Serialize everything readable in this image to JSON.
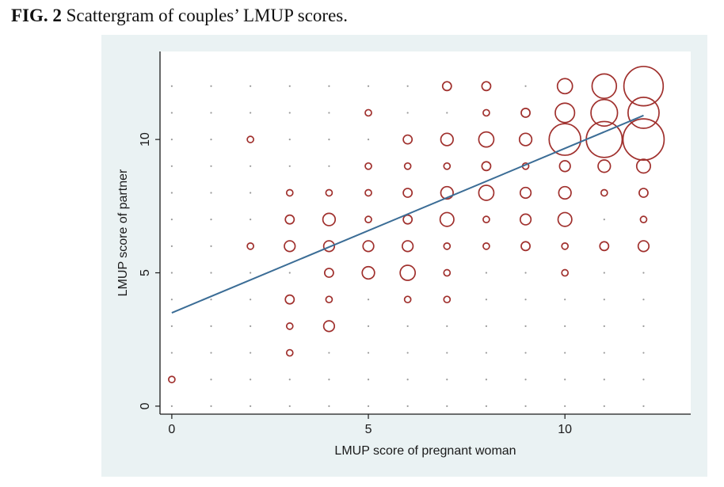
{
  "caption": {
    "label": "FIG. 2",
    "text": "Scattergram of couples’ LMUP scores."
  },
  "chart_data": {
    "type": "scatter",
    "title": "",
    "xlabel": "LMUP score of pregnant woman",
    "ylabel": "LMUP score of partner",
    "xlim": [
      -0.3,
      13.2
    ],
    "ylim": [
      -0.3,
      13.3
    ],
    "xticks": [
      0,
      5,
      10
    ],
    "yticks": [
      0,
      5,
      10
    ],
    "grid": true,
    "marker_color": "#a0302d",
    "line_color": "#3b6d96",
    "grid_dot_color": "#9a9a9a",
    "background": "#eaf2f3",
    "plot_background": "#ffffff",
    "size_note": "marker area proportional to number of couples",
    "points": [
      [
        0,
        1,
        1
      ],
      [
        2,
        6,
        1
      ],
      [
        2,
        10,
        1
      ],
      [
        3,
        2,
        1
      ],
      [
        3,
        3,
        1
      ],
      [
        3,
        4,
        2
      ],
      [
        3,
        6,
        3
      ],
      [
        3,
        7,
        2
      ],
      [
        3,
        8,
        1
      ],
      [
        4,
        3,
        3
      ],
      [
        4,
        4,
        1
      ],
      [
        4,
        5,
        2
      ],
      [
        4,
        6,
        3
      ],
      [
        4,
        7,
        4
      ],
      [
        4,
        8,
        1
      ],
      [
        5,
        5,
        4
      ],
      [
        5,
        6,
        3
      ],
      [
        5,
        7,
        1
      ],
      [
        5,
        8,
        1
      ],
      [
        5,
        9,
        1
      ],
      [
        5,
        11,
        1
      ],
      [
        6,
        4,
        1
      ],
      [
        6,
        5,
        6
      ],
      [
        6,
        6,
        3
      ],
      [
        6,
        7,
        2
      ],
      [
        6,
        8,
        2
      ],
      [
        6,
        9,
        1
      ],
      [
        6,
        10,
        2
      ],
      [
        7,
        4,
        1
      ],
      [
        7,
        5,
        1
      ],
      [
        7,
        6,
        1
      ],
      [
        7,
        7,
        5
      ],
      [
        7,
        8,
        4
      ],
      [
        7,
        9,
        1
      ],
      [
        7,
        10,
        4
      ],
      [
        7,
        12,
        2
      ],
      [
        8,
        6,
        1
      ],
      [
        8,
        7,
        1
      ],
      [
        8,
        8,
        6
      ],
      [
        8,
        9,
        2
      ],
      [
        8,
        10,
        6
      ],
      [
        8,
        11,
        1
      ],
      [
        8,
        12,
        2
      ],
      [
        9,
        6,
        2
      ],
      [
        9,
        7,
        3
      ],
      [
        9,
        8,
        3
      ],
      [
        9,
        9,
        1
      ],
      [
        9,
        10,
        4
      ],
      [
        9,
        11,
        2
      ],
      [
        10,
        5,
        1
      ],
      [
        10,
        6,
        1
      ],
      [
        10,
        7,
        5
      ],
      [
        10,
        8,
        4
      ],
      [
        10,
        9,
        3
      ],
      [
        10,
        10,
        27
      ],
      [
        10,
        11,
        10
      ],
      [
        10,
        12,
        6
      ],
      [
        11,
        6,
        2
      ],
      [
        11,
        8,
        1
      ],
      [
        11,
        9,
        4
      ],
      [
        11,
        10,
        35
      ],
      [
        11,
        11,
        19
      ],
      [
        11,
        12,
        16
      ],
      [
        12,
        6,
        3
      ],
      [
        12,
        7,
        1
      ],
      [
        12,
        8,
        2
      ],
      [
        12,
        9,
        5
      ],
      [
        12,
        10,
        46
      ],
      [
        12,
        11,
        26
      ],
      [
        12,
        12,
        42
      ]
    ],
    "regression_line": {
      "from": [
        0,
        3.5
      ],
      "to": [
        12,
        10.9
      ]
    }
  }
}
